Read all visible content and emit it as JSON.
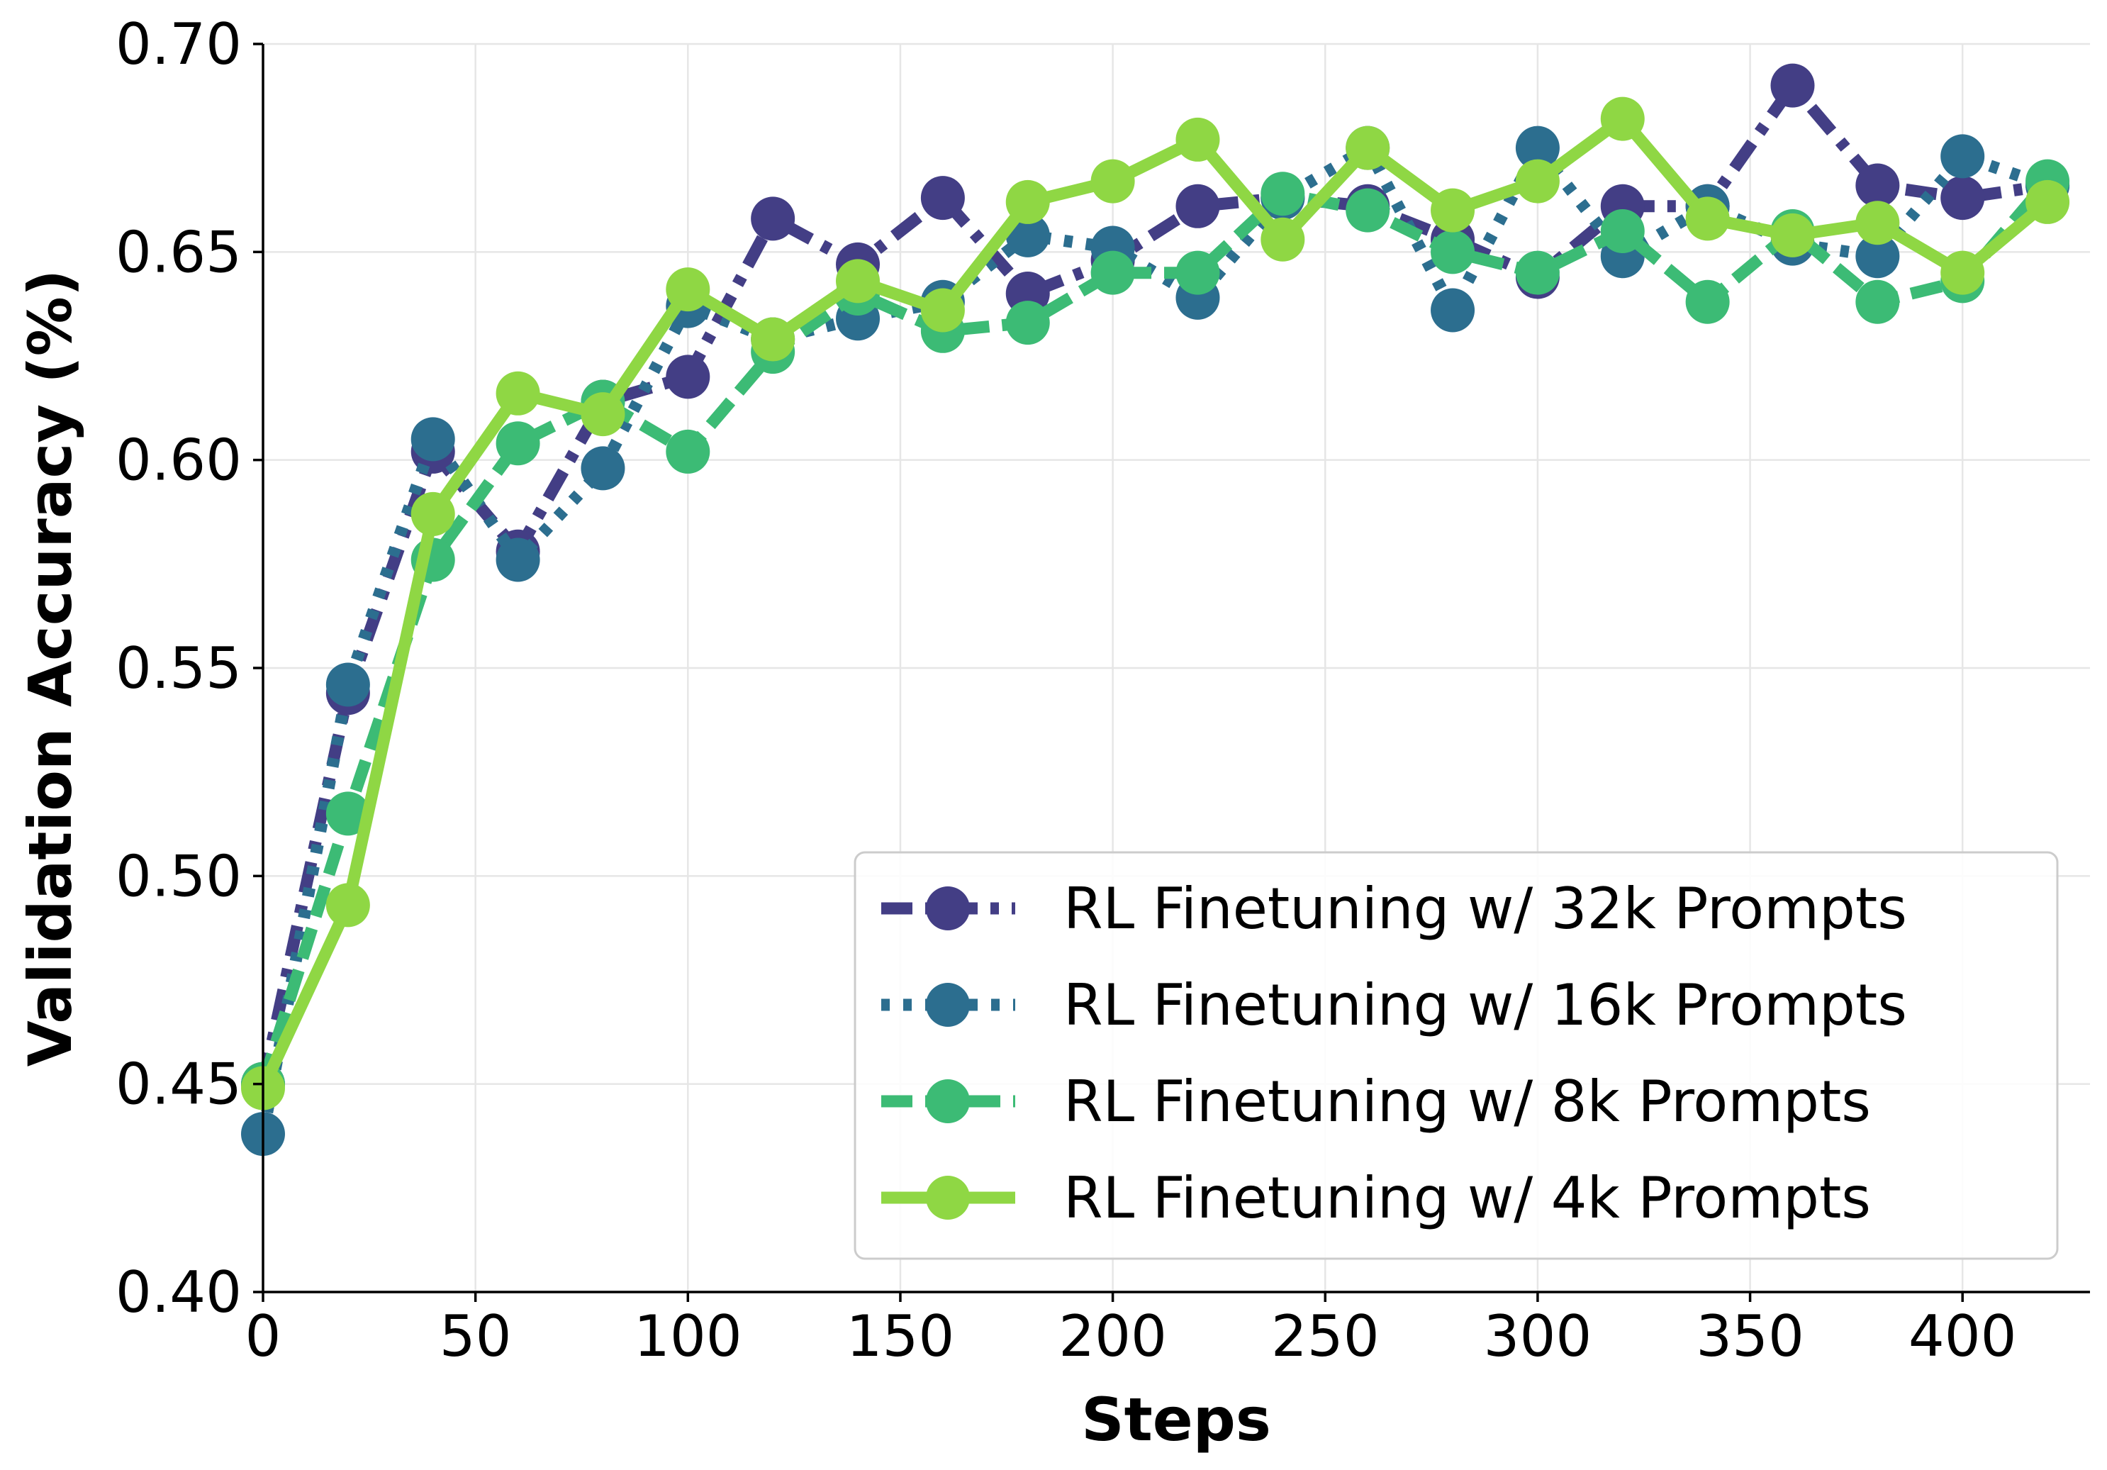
{
  "chart_data": {
    "type": "line",
    "title": "",
    "xlabel": "Steps",
    "ylabel": "Validation Accuracy (%)",
    "xlim": [
      0,
      430
    ],
    "ylim": [
      0.4,
      0.7
    ],
    "xticks": [
      0,
      50,
      100,
      150,
      200,
      250,
      300,
      350,
      400
    ],
    "xtick_labels": [
      "0",
      "50",
      "100",
      "150",
      "200",
      "250",
      "300",
      "350",
      "400"
    ],
    "yticks": [
      0.4,
      0.45,
      0.5,
      0.55,
      0.6,
      0.65,
      0.7
    ],
    "ytick_labels": [
      "0.40",
      "0.45",
      "0.50",
      "0.55",
      "0.60",
      "0.65",
      "0.70"
    ],
    "grid": true,
    "legend_position": "lower-right",
    "x": [
      0,
      20,
      40,
      60,
      80,
      100,
      120,
      140,
      160,
      180,
      200,
      220,
      240,
      260,
      280,
      300,
      320,
      340,
      360,
      380,
      400,
      420
    ],
    "series": [
      {
        "name": "RL Finetuning w/ 32k Prompts",
        "color": "#433e85",
        "dash": "dashdot",
        "values": [
          0.45,
          0.544,
          0.602,
          0.578,
          0.614,
          0.62,
          0.658,
          0.647,
          0.663,
          0.64,
          0.648,
          0.661,
          0.663,
          0.661,
          0.653,
          0.644,
          0.661,
          0.661,
          0.69,
          0.666,
          0.663,
          0.666
        ]
      },
      {
        "name": "RL Finetuning w/ 16k Prompts",
        "color": "#2c6e8f",
        "dash": "dotted",
        "values": [
          0.438,
          0.546,
          0.605,
          0.576,
          0.598,
          0.637,
          0.629,
          0.634,
          0.638,
          0.654,
          0.651,
          0.639,
          0.663,
          0.675,
          0.636,
          0.675,
          0.649,
          0.661,
          0.652,
          0.649,
          0.673,
          0.666
        ]
      },
      {
        "name": "RL Finetuning w/ 8k Prompts",
        "color": "#3cbb75",
        "dash": "dashed",
        "values": [
          0.45,
          0.515,
          0.576,
          0.604,
          0.614,
          0.602,
          0.626,
          0.64,
          0.631,
          0.633,
          0.645,
          0.645,
          0.664,
          0.66,
          0.65,
          0.645,
          0.655,
          0.638,
          0.655,
          0.638,
          0.643,
          0.667
        ]
      },
      {
        "name": "RL Finetuning w/ 4k Prompts",
        "color": "#8fd744",
        "dash": "solid",
        "values": [
          0.449,
          0.493,
          0.587,
          0.616,
          0.611,
          0.641,
          0.629,
          0.643,
          0.636,
          0.662,
          0.667,
          0.677,
          0.653,
          0.675,
          0.66,
          0.667,
          0.682,
          0.658,
          0.654,
          0.657,
          0.645,
          0.662
        ]
      }
    ]
  }
}
